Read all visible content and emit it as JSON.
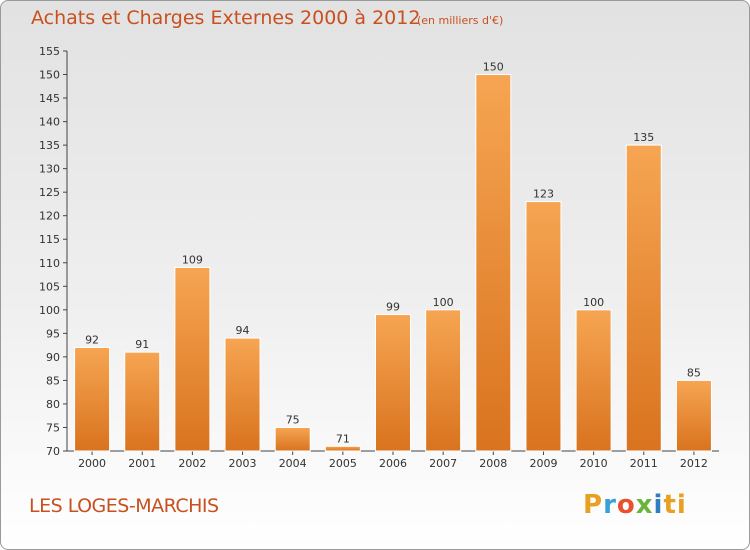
{
  "title": "Achats et Charges Externes 2000 à 2012",
  "unit_note": "(en milliers d'€)",
  "commune": "LES LOGES-MARCHIS",
  "logo": [
    "P",
    "r",
    "o",
    "x",
    "i",
    "ti"
  ],
  "colors": {
    "bar_top": "#f6a552",
    "bar_bottom": "#d9731f",
    "title": "#c8501e"
  },
  "chart_data": {
    "type": "bar",
    "categories": [
      "2000",
      "2001",
      "2002",
      "2003",
      "2004",
      "2005",
      "2006",
      "2007",
      "2008",
      "2009",
      "2010",
      "2011",
      "2012"
    ],
    "values": [
      92,
      91,
      109,
      94,
      75,
      71,
      99,
      100,
      150,
      123,
      100,
      135,
      85
    ],
    "title": "Achats et Charges Externes 2000 à 2012",
    "ylim": [
      70,
      155
    ],
    "yticks": [
      70,
      75,
      80,
      85,
      90,
      95,
      100,
      105,
      110,
      115,
      120,
      125,
      130,
      135,
      140,
      145,
      150,
      155
    ],
    "grid": false
  }
}
